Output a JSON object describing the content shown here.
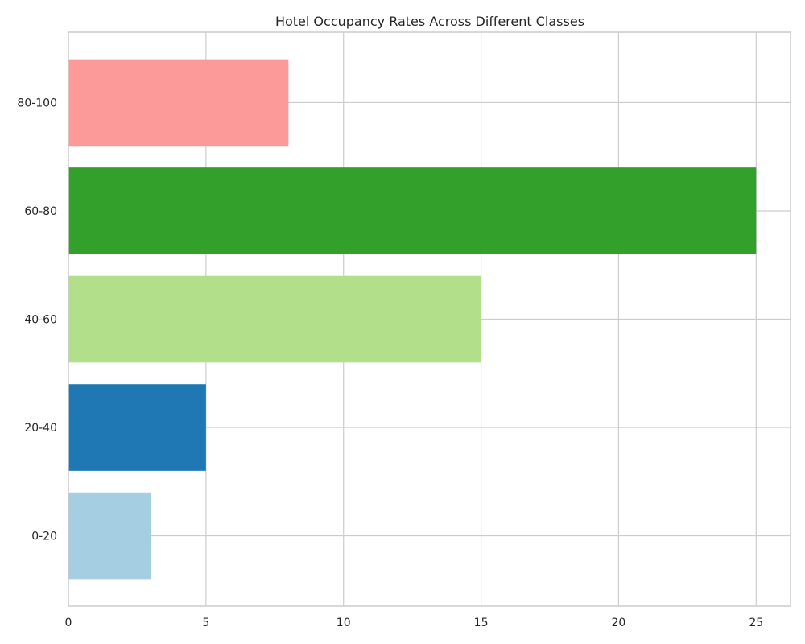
{
  "chart_data": {
    "type": "bar",
    "orientation": "horizontal",
    "title": "Hotel Occupancy Rates Across Different Classes",
    "xlabel": "",
    "ylabel": "",
    "categories": [
      "0-20",
      "20-40",
      "40-60",
      "60-80",
      "80-100"
    ],
    "values": [
      3,
      5,
      15,
      25,
      8
    ],
    "colors": [
      "#a6cee3",
      "#1f78b4",
      "#b2df8a",
      "#33a02c",
      "#fb9a99"
    ],
    "xlim": [
      0,
      26.25
    ],
    "xticks": [
      0,
      5,
      10,
      15,
      20,
      25
    ],
    "xtick_labels": [
      "0",
      "5",
      "10",
      "15",
      "20",
      "25"
    ],
    "grid": true
  }
}
